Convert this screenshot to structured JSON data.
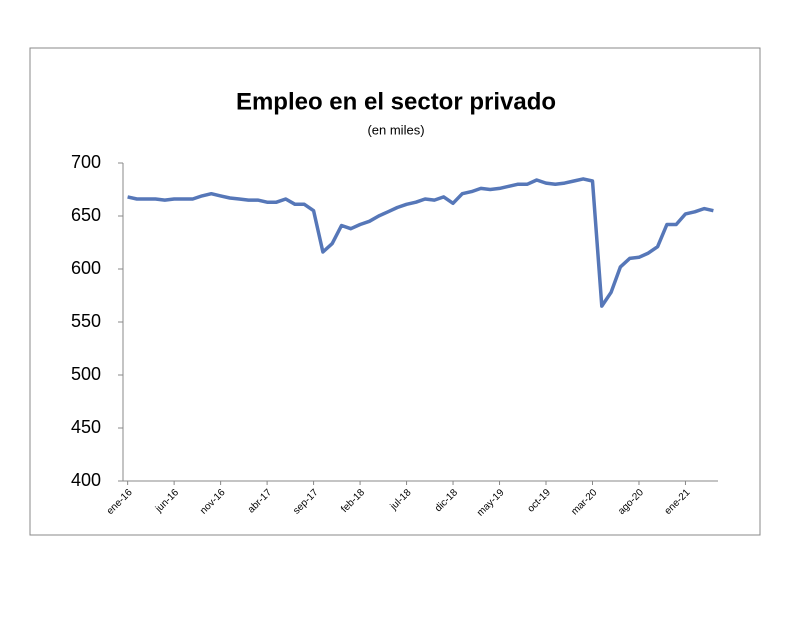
{
  "chart_data": {
    "type": "line",
    "title": "Empleo en el sector privado",
    "subtitle": "(en miles)",
    "categories": [
      "ene-16",
      null,
      null,
      null,
      null,
      "jun-16",
      null,
      null,
      null,
      null,
      "nov-16",
      null,
      null,
      null,
      null,
      "abr-17",
      null,
      null,
      null,
      null,
      "sep-17",
      null,
      null,
      null,
      null,
      "feb-18",
      null,
      null,
      null,
      null,
      "jul-18",
      null,
      null,
      null,
      null,
      "dic-18",
      null,
      null,
      null,
      null,
      "may-19",
      null,
      null,
      null,
      null,
      "oct-19",
      null,
      null,
      null,
      null,
      "mar-20",
      null,
      null,
      null,
      null,
      "ago-20",
      null,
      null,
      null,
      null,
      "ene-21",
      null,
      null,
      null
    ],
    "series": [
      {
        "name": "Empleo",
        "color": "#5677b8",
        "values": [
          668,
          666,
          666,
          666,
          665,
          666,
          666,
          666,
          669,
          671,
          669,
          667,
          666,
          665,
          665,
          663,
          663,
          666,
          661,
          661,
          655,
          616,
          624,
          641,
          638,
          642,
          645,
          650,
          654,
          658,
          661,
          663,
          666,
          665,
          668,
          662,
          671,
          673,
          676,
          675,
          676,
          678,
          680,
          680,
          684,
          681,
          680,
          681,
          683,
          685,
          683,
          565,
          578,
          602,
          610,
          611,
          615,
          621,
          642,
          642,
          652,
          654,
          657,
          655
        ]
      }
    ],
    "ylim": [
      400,
      700
    ],
    "yticks": [
      400,
      450,
      500,
      550,
      600,
      650,
      700
    ],
    "grid": false
  }
}
